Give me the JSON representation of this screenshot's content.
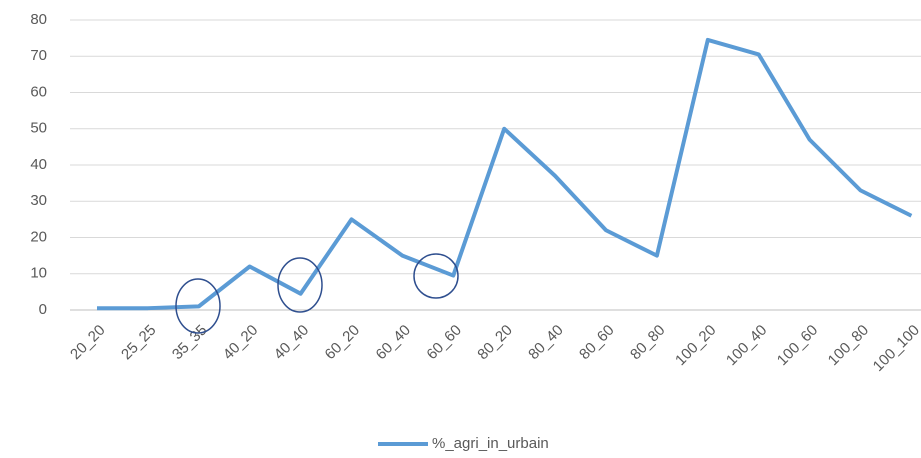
{
  "chart_data": {
    "type": "line",
    "categories": [
      "20_20",
      "25_25",
      "35_35",
      "40_20",
      "40_40",
      "60_20",
      "60_40",
      "60_60",
      "80_20",
      "80_40",
      "80_60",
      "80_80",
      "100_20",
      "100_40",
      "100_60",
      "100_80",
      "100_100"
    ],
    "series": [
      {
        "name": "%_agri_in_urbain",
        "color": "#5b9bd5",
        "values": [
          0.5,
          0.5,
          1,
          12,
          4.5,
          25,
          15,
          9.5,
          50,
          37,
          22,
          15,
          74.5,
          70.5,
          47,
          33,
          26
        ]
      }
    ],
    "ylim": [
      0,
      80
    ],
    "yticks": [
      0,
      10,
      20,
      30,
      40,
      50,
      60,
      70,
      80
    ],
    "grid": true,
    "legend": "bottom"
  }
}
